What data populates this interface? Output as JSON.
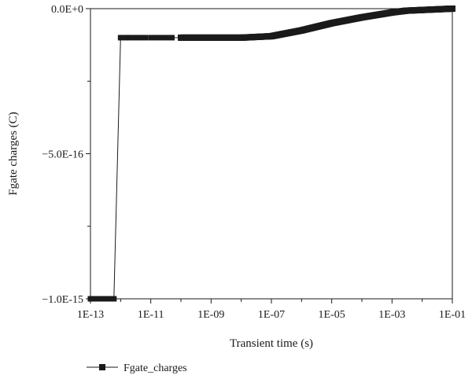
{
  "chart_data": {
    "type": "line",
    "title": "",
    "xlabel": "Transient time (s)",
    "ylabel": "Fgate charges (C)",
    "x_scale": "log",
    "xlim": [
      1e-13,
      0.1
    ],
    "ylim": [
      -1e-15,
      0
    ],
    "x_ticks": [
      {
        "value": 1e-13,
        "label": "1E-13"
      },
      {
        "value": 1e-11,
        "label": "1E-11"
      },
      {
        "value": 1e-09,
        "label": "1E-09"
      },
      {
        "value": 1e-07,
        "label": "1E-07"
      },
      {
        "value": 1e-05,
        "label": "1E-05"
      },
      {
        "value": 0.001,
        "label": "1E-03"
      },
      {
        "value": 0.1,
        "label": "1E-01"
      }
    ],
    "y_ticks": [
      {
        "value": 0,
        "label": "0.0E+0"
      },
      {
        "value": -5e-16,
        "label": "−5.0E-16"
      },
      {
        "value": -1e-15,
        "label": "−1.0E-15"
      }
    ],
    "grid": false,
    "legend_position": "bottom-left",
    "series": [
      {
        "name": "Fgate_charges",
        "color": "#1a1a1a",
        "marker": "square",
        "x": [
          1e-13,
          1.5e-13,
          2e-13,
          3e-13,
          4.5e-13,
          6e-13,
          1e-12,
          1.5e-12,
          2e-12,
          3e-12,
          4.5e-12,
          6.5e-12,
          1e-11,
          1.5e-11,
          2.2e-11,
          3.3e-11,
          5e-11,
          1e-10,
          1e-09,
          1e-08,
          1e-07,
          1e-06,
          1e-05,
          0.0001,
          0.001,
          0.003,
          0.1
        ],
        "y": [
          -1e-15,
          -1e-15,
          -1e-15,
          -1e-15,
          -1e-15,
          -1e-15,
          -1e-16,
          -1e-16,
          -1e-16,
          -1e-16,
          -1e-16,
          -1e-16,
          -1e-16,
          -1e-16,
          -1e-16,
          -1e-16,
          -1e-16,
          -1e-16,
          -1e-16,
          -1e-16,
          -9.5e-17,
          -7.5e-17,
          -5e-17,
          -3e-17,
          -1.3e-17,
          -7e-18,
          0
        ]
      }
    ]
  }
}
